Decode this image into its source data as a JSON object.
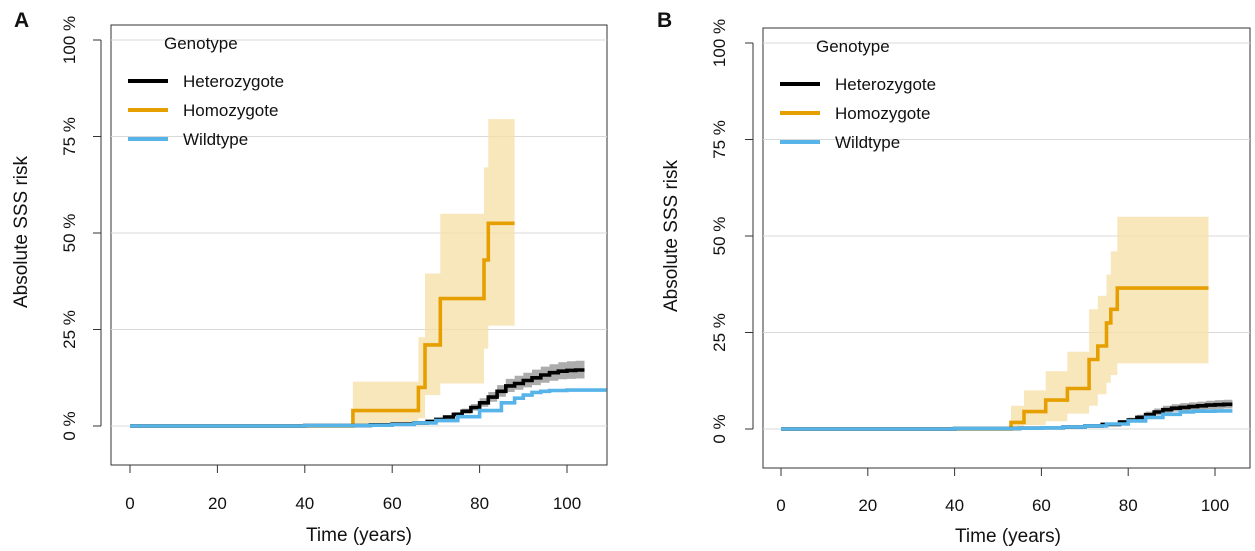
{
  "chart_data": [
    {
      "panel_label": "A",
      "type": "line",
      "step": true,
      "xlabel": "Time (years)",
      "ylabel": "Absolute SSS risk",
      "xlim": [
        -5,
        110
      ],
      "ylim": [
        -0.02,
        1.04
      ],
      "xticks": [
        0,
        20,
        40,
        60,
        80,
        100
      ],
      "xtick_labels": [
        "0",
        "20",
        "40",
        "60",
        "80",
        "100"
      ],
      "yticks": [
        0,
        0.25,
        0.5,
        0.75,
        1.0
      ],
      "ytick_labels": [
        "0 %",
        "25 %",
        "50 %",
        "75 %",
        "100 %"
      ],
      "grid": "horizontal",
      "legend": {
        "title": "Genotype",
        "position": "top-left",
        "entries": [
          "Heterozygote",
          "Homozygote",
          "Wildtype"
        ]
      },
      "series": [
        {
          "name": "Heterozygote",
          "color": "#000000",
          "ci_color": "#9e9e9e",
          "x": [
            0,
            40,
            55,
            60,
            65,
            68,
            70,
            72,
            74,
            76,
            78,
            80,
            82,
            84,
            86,
            88,
            90,
            92,
            94,
            96,
            98,
            100,
            102,
            104
          ],
          "y": [
            0,
            0.001,
            0.003,
            0.005,
            0.008,
            0.012,
            0.017,
            0.023,
            0.03,
            0.038,
            0.048,
            0.06,
            0.075,
            0.09,
            0.104,
            0.11,
            0.118,
            0.125,
            0.132,
            0.138,
            0.142,
            0.144,
            0.145,
            0.145
          ],
          "ci_lower": [
            0,
            0.001,
            0.002,
            0.004,
            0.006,
            0.01,
            0.014,
            0.019,
            0.025,
            0.032,
            0.04,
            0.05,
            0.063,
            0.076,
            0.088,
            0.094,
            0.1,
            0.106,
            0.112,
            0.117,
            0.121,
            0.122,
            0.123,
            0.123
          ],
          "ci_upper": [
            0,
            0.002,
            0.004,
            0.007,
            0.011,
            0.015,
            0.021,
            0.028,
            0.036,
            0.045,
            0.057,
            0.072,
            0.088,
            0.106,
            0.122,
            0.13,
            0.138,
            0.146,
            0.154,
            0.16,
            0.165,
            0.168,
            0.169,
            0.17
          ]
        },
        {
          "name": "Homozygote",
          "color": "#e69f00",
          "ci_color": "#f7dfa6",
          "x": [
            0,
            51,
            66,
            67.5,
            71,
            81,
            82,
            88
          ],
          "y": [
            0,
            0.04,
            0.1,
            0.21,
            0.33,
            0.43,
            0.525,
            0.525
          ],
          "ci_lower": [
            0,
            0.005,
            0.02,
            0.08,
            0.11,
            0.2,
            0.26,
            0.26
          ],
          "ci_upper": [
            0,
            0.115,
            0.23,
            0.395,
            0.55,
            0.67,
            0.795,
            0.795
          ]
        },
        {
          "name": "Wildtype",
          "color": "#56b4e9",
          "x": [
            0,
            40,
            55,
            60,
            65,
            70,
            75,
            80,
            85,
            88,
            90,
            92,
            94,
            96,
            100,
            105,
            109
          ],
          "y": [
            0,
            0.001,
            0.002,
            0.004,
            0.008,
            0.014,
            0.024,
            0.04,
            0.06,
            0.072,
            0.08,
            0.087,
            0.09,
            0.092,
            0.093,
            0.093,
            0.093
          ]
        }
      ]
    },
    {
      "panel_label": "B",
      "type": "line",
      "step": true,
      "xlabel": "Time (years)",
      "ylabel": "Absolute SSS risk",
      "xlim": [
        -5,
        110
      ],
      "ylim": [
        -0.02,
        1.04
      ],
      "xticks": [
        0,
        20,
        40,
        60,
        80,
        100
      ],
      "xtick_labels": [
        "0",
        "20",
        "40",
        "60",
        "80",
        "100"
      ],
      "yticks": [
        0,
        0.25,
        0.5,
        0.75,
        1.0
      ],
      "ytick_labels": [
        "0 %",
        "25 %",
        "50 %",
        "75 %",
        "100 %"
      ],
      "grid": "horizontal",
      "legend": {
        "title": "Genotype",
        "position": "top-left",
        "entries": [
          "Heterozygote",
          "Homozygote",
          "Wildtype"
        ]
      },
      "series": [
        {
          "name": "Heterozygote",
          "color": "#000000",
          "ci_color": "#9e9e9e",
          "x": [
            0,
            40,
            55,
            60,
            65,
            70,
            74,
            78,
            80,
            82,
            84,
            86,
            88,
            90,
            92,
            94,
            96,
            98,
            100,
            102,
            104
          ],
          "y": [
            0,
            0.001,
            0.002,
            0.003,
            0.005,
            0.008,
            0.012,
            0.018,
            0.023,
            0.03,
            0.037,
            0.044,
            0.05,
            0.054,
            0.056,
            0.058,
            0.06,
            0.062,
            0.063,
            0.064,
            0.064
          ],
          "ci_lower": [
            0,
            0.001,
            0.001,
            0.002,
            0.004,
            0.006,
            0.009,
            0.014,
            0.018,
            0.024,
            0.03,
            0.036,
            0.041,
            0.045,
            0.047,
            0.049,
            0.05,
            0.051,
            0.052,
            0.053,
            0.053
          ],
          "ci_upper": [
            0,
            0.002,
            0.003,
            0.005,
            0.007,
            0.011,
            0.016,
            0.023,
            0.029,
            0.037,
            0.045,
            0.053,
            0.06,
            0.064,
            0.067,
            0.069,
            0.071,
            0.073,
            0.075,
            0.076,
            0.076
          ]
        },
        {
          "name": "Homozygote",
          "color": "#e69f00",
          "ci_color": "#f7dfa6",
          "x": [
            0,
            53,
            56,
            61,
            66,
            71,
            73,
            75,
            76,
            77.5,
            98.5
          ],
          "y": [
            0,
            0.017,
            0.045,
            0.075,
            0.105,
            0.18,
            0.215,
            0.275,
            0.31,
            0.365,
            0.365
          ],
          "ci_lower": [
            0,
            0.002,
            0.01,
            0.02,
            0.04,
            0.06,
            0.09,
            0.12,
            0.14,
            0.17,
            0.17
          ],
          "ci_upper": [
            0,
            0.06,
            0.1,
            0.15,
            0.2,
            0.31,
            0.345,
            0.4,
            0.46,
            0.55,
            0.55
          ]
        },
        {
          "name": "Wildtype",
          "color": "#56b4e9",
          "x": [
            0,
            40,
            55,
            60,
            65,
            70,
            75,
            80,
            84,
            88,
            92,
            95,
            100,
            104
          ],
          "y": [
            0,
            0.001,
            0.002,
            0.003,
            0.005,
            0.008,
            0.013,
            0.021,
            0.03,
            0.038,
            0.044,
            0.046,
            0.047,
            0.047
          ]
        }
      ]
    }
  ]
}
